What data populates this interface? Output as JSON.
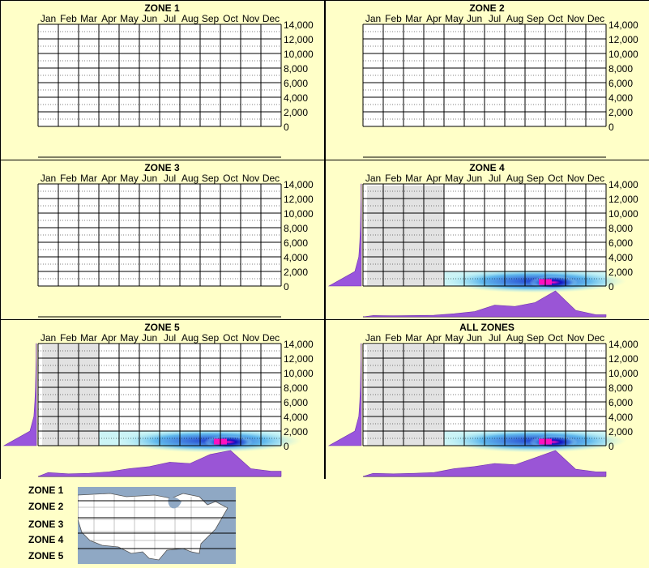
{
  "months": [
    "Jan",
    "Feb",
    "Mar",
    "Apr",
    "May",
    "Jun",
    "Jul",
    "Aug",
    "Sep",
    "Oct",
    "Nov",
    "Dec"
  ],
  "y_ticks": [
    "14,000",
    "12,000",
    "10,000",
    "8,000",
    "6,000",
    "4,000",
    "2,000",
    "0"
  ],
  "colors": {
    "background": "#ffffc8",
    "season_shade": "#e2e2e2",
    "side_profile": "#9955dd",
    "profile_fill": "#9a55d6",
    "heat_low": "#aef0f4",
    "heat_mid": "#1010c0",
    "heat_high": "#ff10c0"
  },
  "chart_data": [
    {
      "type": "heatmap",
      "title": "ZONE 1",
      "ylim": [
        0,
        14000
      ],
      "has_data": false
    },
    {
      "type": "heatmap",
      "title": "ZONE 2",
      "ylim": [
        0,
        14000
      ],
      "has_data": false
    },
    {
      "type": "heatmap",
      "title": "ZONE 3",
      "ylim": [
        0,
        14000
      ],
      "has_data": false
    },
    {
      "type": "heatmap",
      "title": "ZONE 4",
      "ylim": [
        0,
        14000
      ],
      "has_data": true,
      "shaded_months": [
        "Jan",
        "Feb",
        "Mar",
        "Apr"
      ],
      "heat_band_elevation": [
        0,
        2000
      ],
      "heat_peak": {
        "month": "Oct",
        "elevation": 500
      },
      "monthly_profile": [
        0.05,
        0.04,
        0.05,
        0.06,
        0.12,
        0.2,
        0.45,
        0.4,
        0.55,
        1.0,
        0.25,
        0.08
      ],
      "elevation_profile": [
        1.0,
        0.2,
        0.08,
        0.05,
        0.03,
        0.02,
        0.01,
        0.01
      ]
    },
    {
      "type": "heatmap",
      "title": "ZONE 5",
      "ylim": [
        0,
        14000
      ],
      "has_data": true,
      "shaded_months": [
        "Jan",
        "Feb",
        "Mar"
      ],
      "heat_band_elevation": [
        0,
        2000
      ],
      "heat_peak": {
        "month": "Oct",
        "elevation": 500
      },
      "monthly_profile": [
        0.15,
        0.1,
        0.12,
        0.18,
        0.3,
        0.38,
        0.55,
        0.5,
        0.85,
        1.0,
        0.3,
        0.2
      ],
      "elevation_profile": [
        1.0,
        0.2,
        0.08,
        0.05,
        0.03,
        0.02,
        0.01,
        0.01
      ]
    },
    {
      "type": "heatmap",
      "title": "ALL ZONES",
      "ylim": [
        0,
        14000
      ],
      "has_data": true,
      "shaded_months": [
        "Jan",
        "Feb",
        "Mar",
        "Apr"
      ],
      "heat_band_elevation": [
        0,
        2000
      ],
      "heat_peak": {
        "month": "Oct",
        "elevation": 500
      },
      "monthly_profile": [
        0.12,
        0.1,
        0.12,
        0.15,
        0.3,
        0.38,
        0.5,
        0.45,
        0.72,
        1.0,
        0.28,
        0.18
      ],
      "elevation_profile": [
        1.0,
        0.2,
        0.08,
        0.05,
        0.03,
        0.02,
        0.01,
        0.01
      ]
    }
  ],
  "legend": {
    "zones": [
      "ZONE 1",
      "ZONE 2",
      "ZONE 3",
      "ZONE 4",
      "ZONE 5"
    ],
    "map_icon": "us-map-icon"
  }
}
